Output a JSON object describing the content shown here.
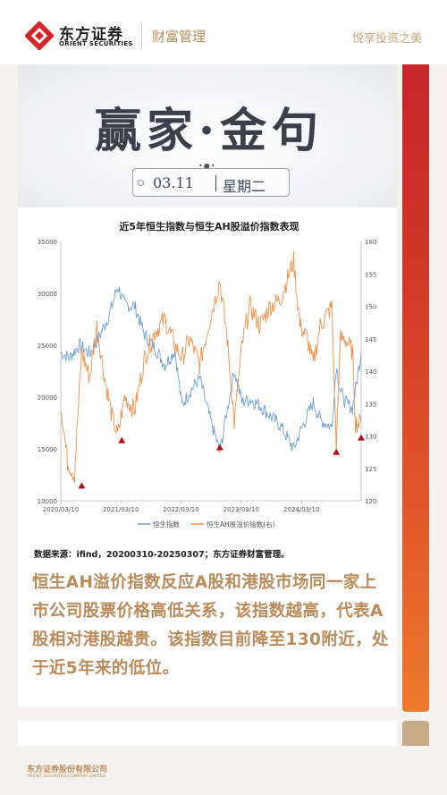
{
  "header": {
    "brand_cn": "东方证券",
    "brand_en": "ORIENT SECURITIES",
    "section": "财富管理",
    "slogan": "悦享投资之美"
  },
  "hero": {
    "title": "赢家·金句",
    "date": "03.11",
    "weekday": "星期二"
  },
  "chart_data": {
    "type": "line",
    "title": "近5年恒生指数与恒生AH股溢价指数表现",
    "x_ticks": [
      "2020/03/10",
      "2021/03/10",
      "2022/03/10",
      "2023/03/10",
      "2024/03/10"
    ],
    "y_left": {
      "ticks": [
        10000,
        15000,
        20000,
        25000,
        30000,
        35000
      ],
      "range": [
        10000,
        35000
      ]
    },
    "y_right": {
      "ticks": [
        120,
        125,
        130,
        135,
        140,
        145,
        150,
        155,
        160
      ],
      "range": [
        120,
        160
      ]
    },
    "series": [
      {
        "name": "恒生指数",
        "axis": "left",
        "color": "#6fa0d4",
        "x": [
          "2020/03/10",
          "2020/05/01",
          "2020/07/01",
          "2020/09/01",
          "2020/11/01",
          "2021/01/01",
          "2021/02/18",
          "2021/04/01",
          "2021/06/01",
          "2021/08/01",
          "2021/10/01",
          "2021/12/01",
          "2022/02/01",
          "2022/03/15",
          "2022/05/01",
          "2022/07/01",
          "2022/09/01",
          "2022/10/31",
          "2022/12/01",
          "2023/01/27",
          "2023/03/15",
          "2023/05/01",
          "2023/07/01",
          "2023/09/01",
          "2023/11/01",
          "2024/01/22",
          "2024/03/01",
          "2024/05/20",
          "2024/07/01",
          "2024/09/10",
          "2024/10/07",
          "2024/11/01",
          "2024/12/01",
          "2025/01/13",
          "2025/02/01",
          "2025/03/07"
        ],
        "values": [
          24300,
          23800,
          25000,
          24200,
          25900,
          28000,
          30700,
          28900,
          28800,
          26000,
          24800,
          23100,
          24500,
          19200,
          20500,
          21800,
          18000,
          14700,
          17500,
          22600,
          19500,
          19800,
          19200,
          18200,
          17300,
          15000,
          16600,
          19500,
          17800,
          17100,
          23100,
          20600,
          19500,
          18900,
          20800,
          24200
        ]
      },
      {
        "name": "恒生AH股溢价指数(右)",
        "axis": "right",
        "color": "#f0904a",
        "x": [
          "2020/03/10",
          "2020/04/20",
          "2020/06/01",
          "2020/07/15",
          "2020/09/01",
          "2020/10/15",
          "2020/12/01",
          "2021/01/15",
          "2021/02/18",
          "2021/04/01",
          "2021/06/01",
          "2021/08/01",
          "2021/10/01",
          "2021/12/01",
          "2022/02/01",
          "2022/03/15",
          "2022/05/01",
          "2022/07/01",
          "2022/09/01",
          "2022/10/31",
          "2022/12/15",
          "2023/01/27",
          "2023/03/15",
          "2023/05/01",
          "2023/07/01",
          "2023/09/01",
          "2023/11/01",
          "2024/01/22",
          "2024/03/01",
          "2024/04/15",
          "2024/05/20",
          "2024/07/01",
          "2024/09/10",
          "2024/10/07",
          "2024/11/01",
          "2024/12/01",
          "2025/01/13",
          "2025/02/01",
          "2025/03/07"
        ],
        "values": [
          135,
          126,
          124,
          143,
          139,
          147,
          139,
          133,
          130,
          136,
          134,
          142,
          146,
          148,
          144,
          142,
          145,
          141,
          148,
          154,
          145,
          132,
          144,
          150,
          147,
          150,
          151,
          157,
          147,
          145,
          141,
          147,
          150,
          128,
          145,
          145,
          143,
          132,
          132
        ]
      }
    ],
    "markers": [
      {
        "x": "2020/07/15",
        "y_right": 122.3,
        "color": "#b01016"
      },
      {
        "x": "2021/03/15",
        "y_right": 129.3,
        "color": "#b01016"
      },
      {
        "x": "2022/10/31",
        "y_right": 128.2,
        "color": "#b01016"
      },
      {
        "x": "2024/10/07",
        "y_right": 127.5,
        "color": "#b01016"
      },
      {
        "x": "2025/03/07",
        "y_right": 129.7,
        "color": "#b01016"
      }
    ],
    "legend": "bottom-center"
  },
  "source": "数据来源：ifind，20200310-20250307；东方证券财富管理。",
  "body": "恒生AH溢价指数反应A股和港股市场同一家上市公司股票价格高低关系，该指数越高，代表A股相对港股越贵。该指数目前降至130附近，处于近5年来的低位。",
  "footer": {
    "company_cn": "东方证券股份有限公司",
    "company_en": "ORIENT SECURITIES COMPANY LIMITED"
  }
}
